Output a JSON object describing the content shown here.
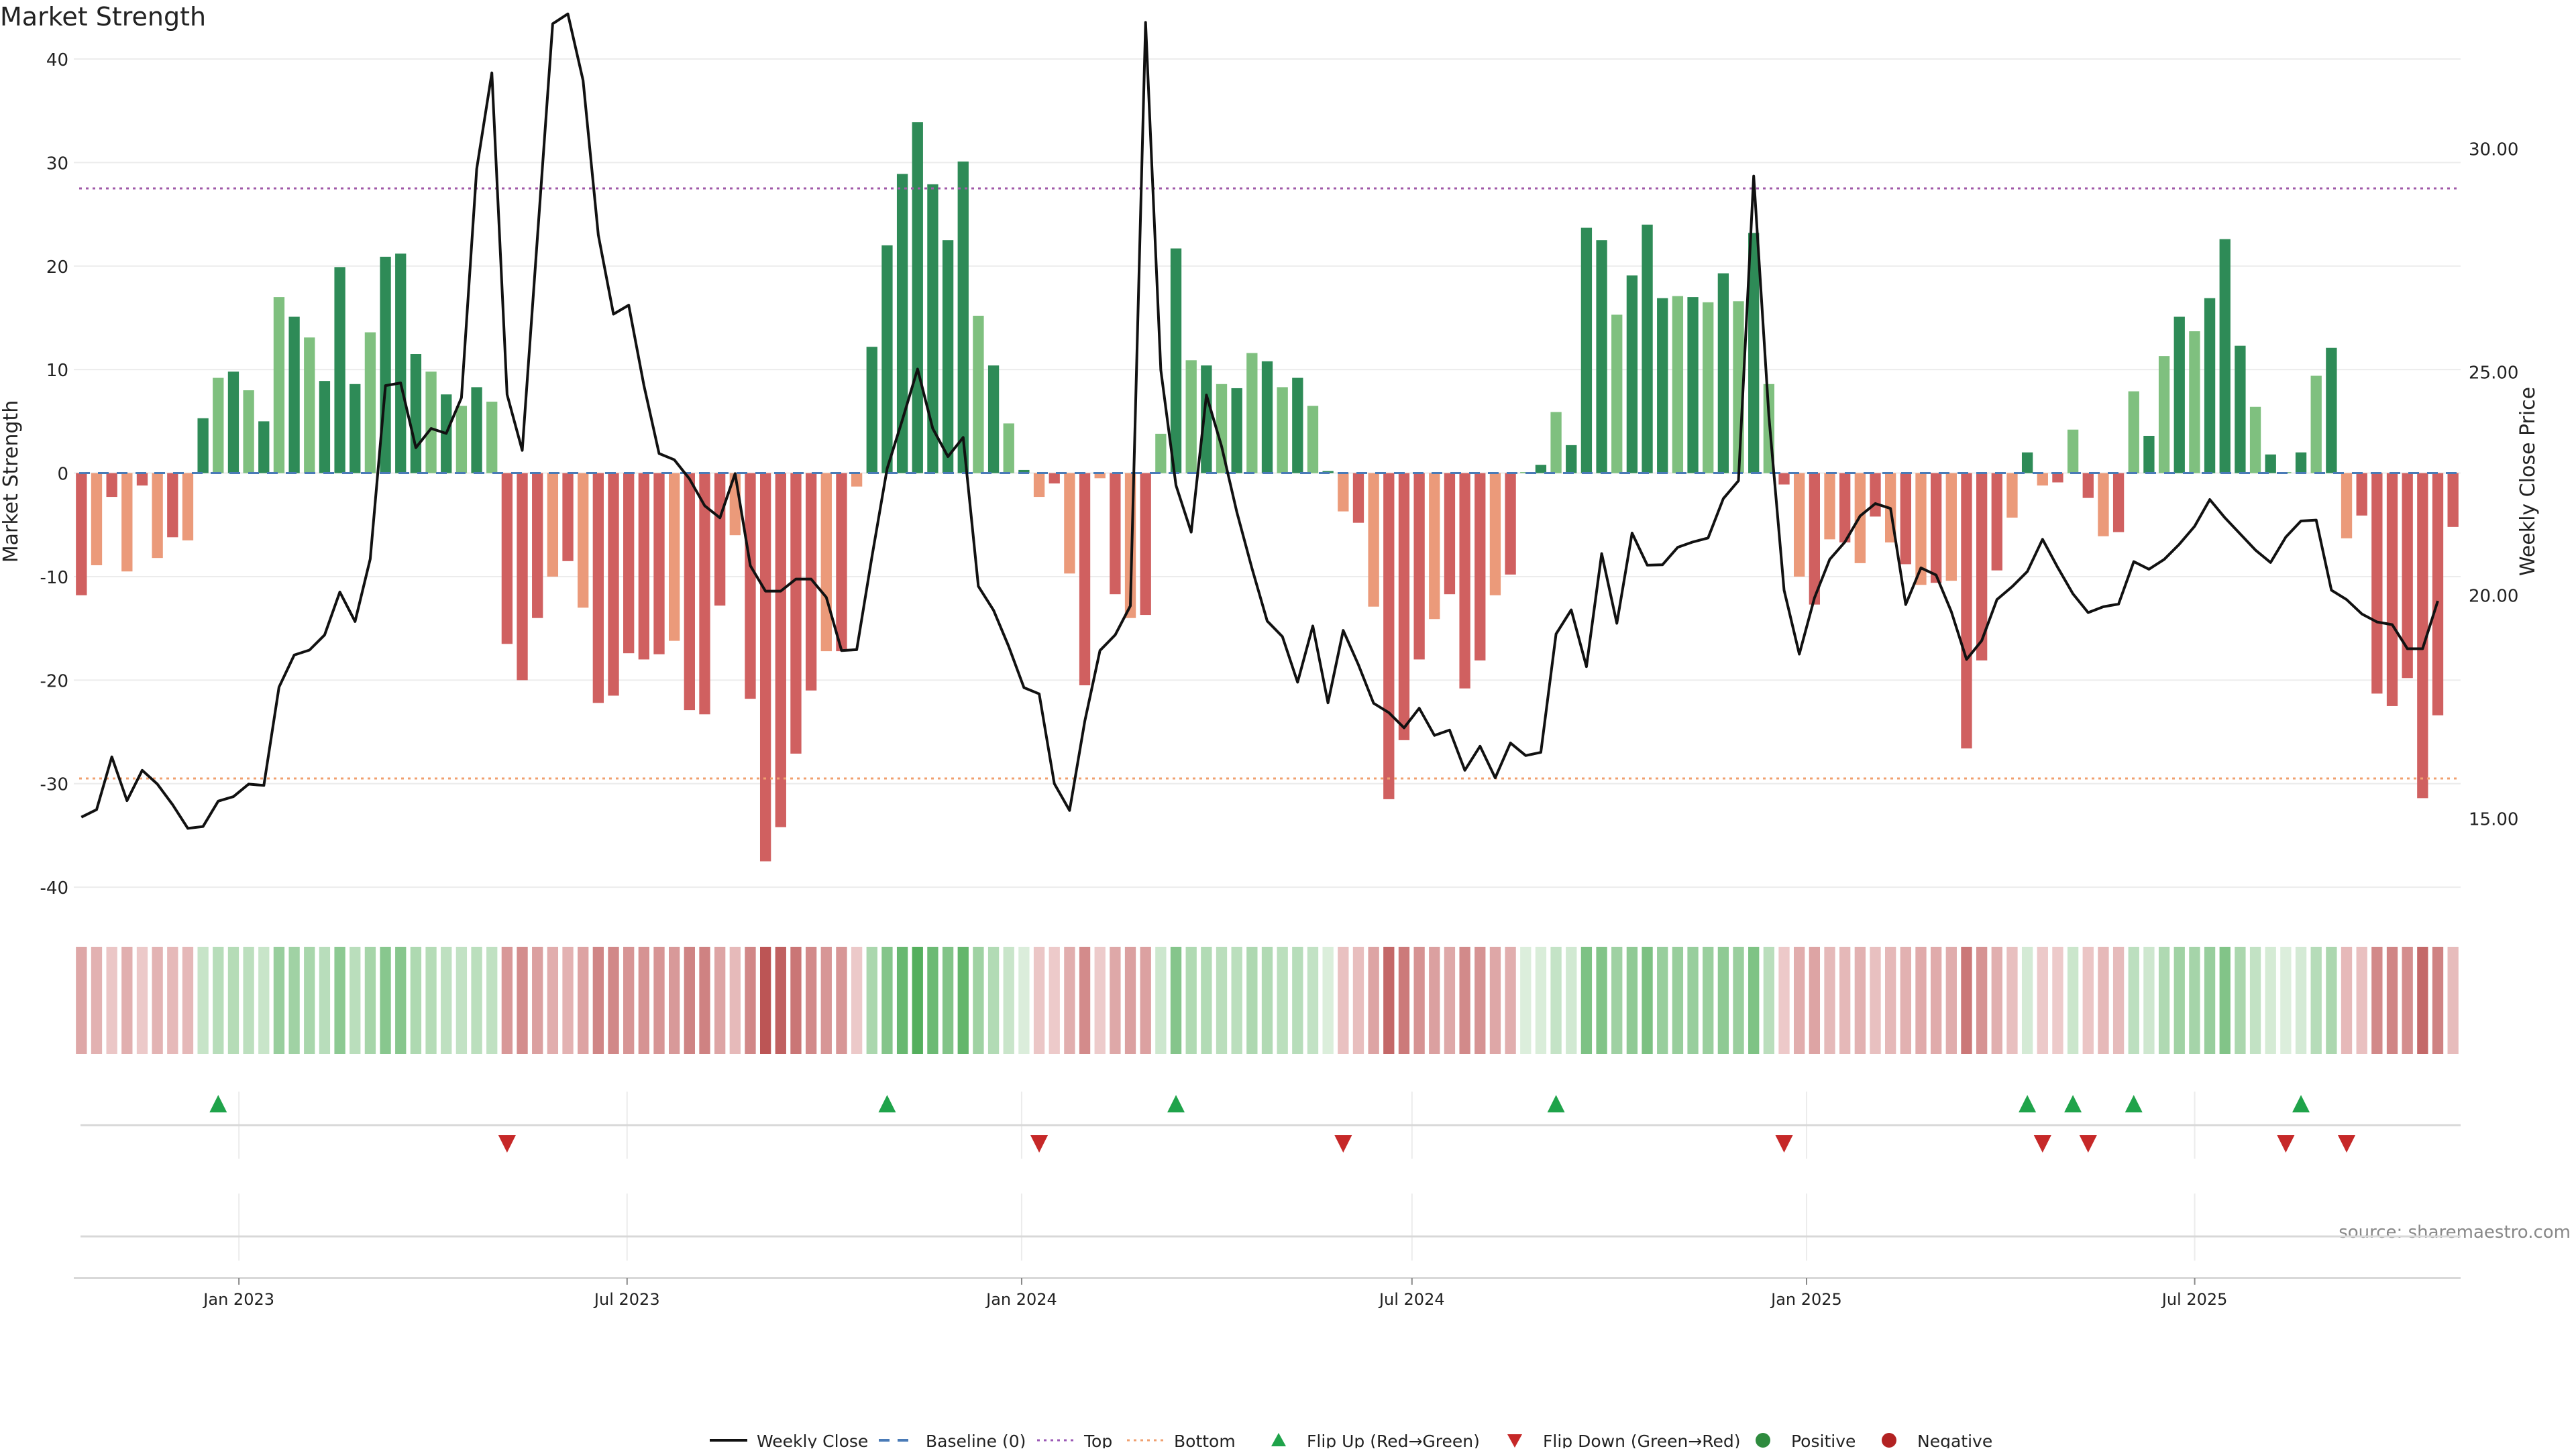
{
  "chart_data": {
    "type": "bar",
    "title": "Market Strength",
    "ylabel": "Market Strength",
    "y2label": "Weekly Close Price",
    "ylim": [
      -42,
      40
    ],
    "y2lim": [
      13.0,
      32.0
    ],
    "yticks": [
      40,
      30,
      20,
      10,
      0,
      -10,
      -20,
      -30,
      -40
    ],
    "y2ticks": [
      "30.00",
      "25.00",
      "20.00",
      "15.00"
    ],
    "y2tick_values": [
      30,
      25,
      20,
      15
    ],
    "top_level": 27.5,
    "bottom_level": -29.5,
    "x_start": "2022-10-16",
    "x_end": "2025-11-02",
    "xticks": [
      {
        "date": "2023-01-01",
        "label": "Jan 2023"
      },
      {
        "date": "2023-07-01",
        "label": "Jul 2023"
      },
      {
        "date": "2024-01-01",
        "label": "Jan 2024"
      },
      {
        "date": "2024-07-01",
        "label": "Jul 2024"
      },
      {
        "date": "2025-01-01",
        "label": "Jan 2025"
      },
      {
        "date": "2025-07-01",
        "label": "Jul 2025"
      }
    ],
    "strength": [
      -11.8,
      -8.9,
      -2.3,
      -9.5,
      -1.2,
      -8.2,
      -6.2,
      -6.5,
      5.3,
      9.2,
      9.8,
      8.0,
      5.0,
      17.0,
      15.1,
      13.1,
      8.9,
      19.9,
      8.6,
      13.6,
      20.9,
      21.2,
      11.5,
      9.8,
      7.6,
      6.5,
      8.3,
      6.9,
      -16.5,
      -20.0,
      -14.0,
      -10.0,
      -8.5,
      -13.0,
      -22.2,
      -21.5,
      -17.4,
      -18.0,
      -17.5,
      -16.2,
      -22.9,
      -23.3,
      -12.8,
      -6.0,
      -21.8,
      -37.5,
      -34.2,
      -27.1,
      -21.0,
      -17.2,
      -17.2,
      -1.3,
      12.2,
      22.0,
      28.9,
      33.9,
      27.9,
      22.5,
      30.1,
      15.2,
      10.4,
      4.8,
      0.3,
      -2.3,
      -1.0,
      -9.7,
      -20.5,
      -0.5,
      -11.7,
      -14.0,
      -13.7,
      3.8,
      21.7,
      10.9,
      10.4,
      8.6,
      8.2,
      11.6,
      10.8,
      8.3,
      9.2,
      6.5,
      0.2,
      -3.7,
      -4.8,
      -12.9,
      -31.5,
      -25.8,
      -18.0,
      -14.1,
      -11.7,
      -20.8,
      -18.1,
      -11.8,
      -9.8,
      0.1,
      0.8,
      5.9,
      2.7,
      23.7,
      22.5,
      15.3,
      19.1,
      24.0,
      16.9,
      17.1,
      17.0,
      16.5,
      19.3,
      16.6,
      23.2,
      8.6,
      -1.1,
      -10.0,
      -12.7,
      -6.4,
      -6.7,
      -8.7,
      -4.2,
      -6.7,
      -8.8,
      -10.8,
      -10.6,
      -10.4,
      -26.6,
      -18.1,
      -9.4,
      -4.3,
      2.0,
      -1.2,
      -0.9,
      4.2,
      -2.4,
      -6.1,
      -5.7,
      7.9,
      3.6,
      11.3,
      15.1,
      13.7,
      16.9,
      22.6,
      12.3,
      6.4,
      1.8,
      0.1,
      2.0,
      9.4,
      12.1,
      -6.3,
      -4.1,
      -21.3,
      -22.5,
      -19.8,
      -31.4,
      -23.4,
      -5.2
    ],
    "close": [
      15.03,
      15.2,
      16.38,
      15.4,
      16.08,
      15.77,
      15.31,
      14.78,
      14.82,
      15.39,
      15.49,
      15.77,
      15.74,
      17.94,
      18.66,
      18.77,
      19.11,
      20.07,
      19.41,
      20.81,
      24.69,
      24.75,
      23.3,
      23.73,
      23.62,
      24.42,
      29.54,
      31.69,
      24.49,
      23.24,
      28.02,
      32.79,
      33.01,
      31.52,
      28.06,
      26.29,
      26.49,
      24.7,
      23.17,
      23.03,
      22.6,
      22.0,
      21.73,
      22.72,
      20.66,
      20.09,
      20.09,
      20.36,
      20.36,
      19.95,
      18.76,
      18.78,
      20.86,
      22.83,
      23.92,
      25.06,
      23.73,
      23.1,
      23.53,
      20.2,
      19.66,
      18.85,
      17.93,
      17.79,
      15.78,
      15.18,
      17.18,
      18.76,
      19.11,
      19.76,
      32.82,
      25.04,
      22.46,
      21.41,
      24.48,
      23.33,
      21.86,
      20.6,
      19.42,
      19.07,
      18.05,
      19.31,
      17.59,
      19.21,
      18.44,
      17.58,
      17.37,
      17.03,
      17.47,
      16.86,
      16.98,
      16.08,
      16.62,
      15.91,
      16.69,
      16.41,
      16.48,
      19.13,
      19.67,
      18.4,
      20.93,
      19.37,
      21.39,
      20.67,
      20.68,
      21.07,
      21.19,
      21.28,
      22.16,
      22.56,
      29.38,
      24.0,
      20.11,
      18.68,
      19.94,
      20.8,
      21.19,
      21.77,
      22.05,
      21.94,
      19.79,
      20.61,
      20.45,
      19.63,
      18.56,
      18.98,
      19.9,
      20.19,
      20.53,
      21.25,
      20.62,
      20.03,
      19.61,
      19.74,
      19.8,
      20.75,
      20.58,
      20.8,
      21.14,
      21.54,
      22.14,
      21.73,
      21.37,
      21.01,
      20.73,
      21.3,
      21.66,
      21.68,
      20.11,
      19.9,
      19.58,
      19.4,
      19.34,
      18.8,
      18.8,
      19.87
    ],
    "flips_up": [
      9,
      53,
      72,
      97,
      128,
      131,
      135,
      146
    ],
    "flips_down": [
      28,
      63,
      83,
      112,
      129,
      132,
      145,
      149
    ],
    "legend": [
      {
        "label": "Weekly Close",
        "kind": "line",
        "color": "#111111"
      },
      {
        "label": "Baseline (0)",
        "kind": "dash",
        "color": "#4a7bb7"
      },
      {
        "label": "Top",
        "kind": "dots",
        "color": "#9b59b6"
      },
      {
        "label": "Bottom",
        "kind": "dots",
        "color": "#f0a070"
      },
      {
        "label": "Flip Up (Red→Green)",
        "kind": "tri-up",
        "color": "#1fa34a"
      },
      {
        "label": "Flip Down (Green→Red)",
        "kind": "tri-down",
        "color": "#c62828"
      },
      {
        "label": "Positive",
        "kind": "dot",
        "color": "#2e8b3e"
      },
      {
        "label": "Negative",
        "kind": "dot",
        "color": "#b22222"
      }
    ],
    "source": "source: sharemaestro.com",
    "colors": {
      "pos_strong": "#2e8b57",
      "pos_weak": "#7fc07f",
      "neg_strong": "#d06060",
      "neg_weak": "#eb9a7a",
      "line": "#111111",
      "top": "#a05aa8",
      "bottom": "#f0a070",
      "flip_up": "#1fa34a",
      "flip_down": "#c62828"
    }
  }
}
